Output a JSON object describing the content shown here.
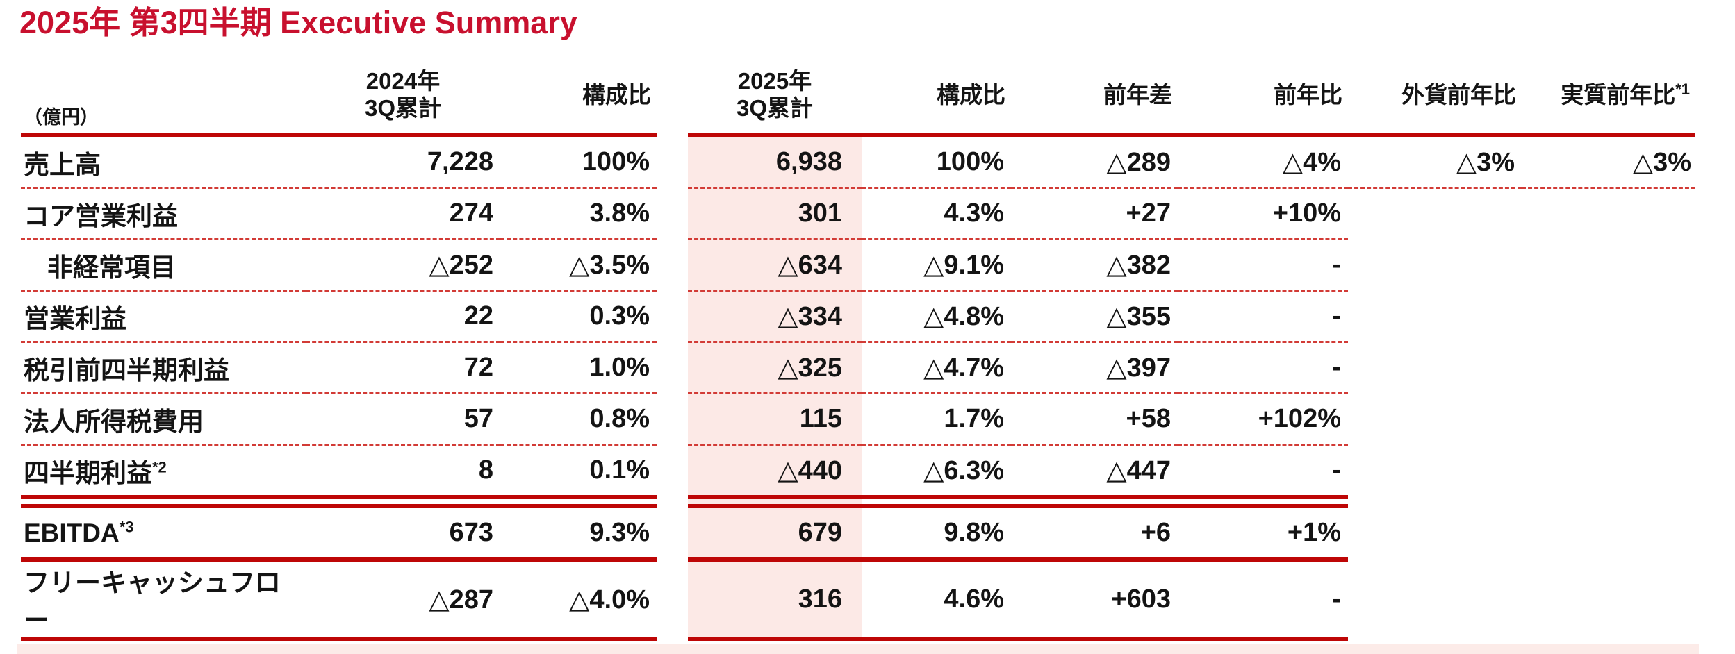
{
  "title": "2025年 第3四半期 Executive Summary",
  "colors": {
    "accent_red": "#C8102E",
    "rule_red": "#BE0606",
    "dotted_red": "#D23B36",
    "highlight_pink": "#FCE9E6",
    "bottom_strip_pink": "#FCEBE8"
  },
  "table": {
    "unit_label": "（億円）",
    "headers": {
      "col_2024_line1": "2024年",
      "col_2024_line2": "3Q累計",
      "ratio_2024": "構成比",
      "col_2025_line1": "2025年",
      "col_2025_line2": "3Q累計",
      "ratio_2025": "構成比",
      "yoy_diff": "前年差",
      "yoy_pct": "前年比",
      "fx_yoy": "外貨前年比",
      "real_yoy": "実質前年比",
      "real_yoy_sup": "*1"
    },
    "rows": [
      {
        "label": "売上高",
        "sup": "",
        "v24": "7,228",
        "r24": "100%",
        "v25": "6,938",
        "r25": "100%",
        "diff": "△289",
        "yoy": "△4%",
        "fx": "△3%",
        "real": "△3%"
      },
      {
        "label": "コア営業利益",
        "sup": "",
        "v24": "274",
        "r24": "3.8%",
        "v25": "301",
        "r25": "4.3%",
        "diff": "+27",
        "yoy": "+10%",
        "fx": "",
        "real": ""
      },
      {
        "label": "非経常項目",
        "sup": "",
        "v24": "△252",
        "r24": "△3.5%",
        "v25": "△634",
        "r25": "△9.1%",
        "diff": "△382",
        "yoy": "-",
        "fx": "",
        "real": ""
      },
      {
        "label": "営業利益",
        "sup": "",
        "v24": "22",
        "r24": "0.3%",
        "v25": "△334",
        "r25": "△4.8%",
        "diff": "△355",
        "yoy": "-",
        "fx": "",
        "real": ""
      },
      {
        "label": "税引前四半期利益",
        "sup": "",
        "v24": "72",
        "r24": "1.0%",
        "v25": "△325",
        "r25": "△4.7%",
        "diff": "△397",
        "yoy": "-",
        "fx": "",
        "real": ""
      },
      {
        "label": "法人所得税費用",
        "sup": "",
        "v24": "57",
        "r24": "0.8%",
        "v25": "115",
        "r25": "1.7%",
        "diff": "+58",
        "yoy": "+102%",
        "fx": "",
        "real": ""
      },
      {
        "label": "四半期利益",
        "sup": "*2",
        "v24": "8",
        "r24": "0.1%",
        "v25": "△440",
        "r25": "△6.3%",
        "diff": "△447",
        "yoy": "-",
        "fx": "",
        "real": ""
      },
      {
        "label": "EBITDA",
        "sup": "*3",
        "v24": "673",
        "r24": "9.3%",
        "v25": "679",
        "r25": "9.8%",
        "diff": "+6",
        "yoy": "+1%",
        "fx": "",
        "real": ""
      },
      {
        "label": "フリーキャッシュフロー",
        "sup": "",
        "v24": "△287",
        "r24": "△4.0%",
        "v25": "316",
        "r25": "4.6%",
        "diff": "+603",
        "yoy": "-",
        "fx": "",
        "real": ""
      }
    ]
  }
}
